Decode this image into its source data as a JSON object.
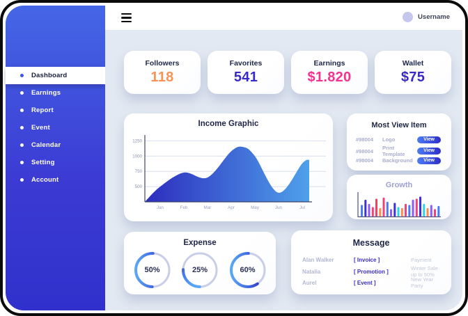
{
  "topbar": {
    "username": "Username"
  },
  "sidebar": {
    "items": [
      {
        "label": "Dashboard",
        "active": true
      },
      {
        "label": "Earnings",
        "active": false
      },
      {
        "label": "Report",
        "active": false
      },
      {
        "label": "Event",
        "active": false
      },
      {
        "label": "Calendar",
        "active": false
      },
      {
        "label": "Setting",
        "active": false
      },
      {
        "label": "Account",
        "active": false
      }
    ]
  },
  "stats": [
    {
      "label": "Followers",
      "value": "118",
      "color": "#FA9255"
    },
    {
      "label": "Favorites",
      "value": "541",
      "color": "#372AC8"
    },
    {
      "label": "Earnings",
      "value": "$1.820",
      "color": "#F5318F"
    },
    {
      "label": "Wallet",
      "value": "$75",
      "color": "#372AC8"
    }
  ],
  "most_view": {
    "title": "Most View Item",
    "rows": [
      {
        "id": "#98004",
        "name": "Logo",
        "action": "View"
      },
      {
        "id": "#98004",
        "name": "Print Template",
        "action": "View"
      },
      {
        "id": "#98004",
        "name": "Background",
        "action": "View"
      }
    ]
  },
  "message": {
    "title": "Message",
    "rows": [
      {
        "name": "Alan Walker",
        "tag": "[ Invoice ]",
        "text": "Payment"
      },
      {
        "name": "Natalia",
        "tag": "[ Promotion ]",
        "text": "Winter Sale up to 50%"
      },
      {
        "name": "Aurel",
        "tag": "[ Event ]",
        "text": "New Year Party"
      }
    ]
  },
  "chart_data": [
    {
      "type": "area",
      "title": "Income Graphic",
      "x_labels": [
        "Jan",
        "Feb",
        "Mar",
        "Apr",
        "May",
        "Jun",
        "Jul"
      ],
      "y_ticks": [
        500,
        750,
        1000,
        1250
      ],
      "y_range": [
        250,
        1300
      ],
      "grid": true,
      "legend": false,
      "gradient": [
        "#2D2DBE",
        "#4FA0EA"
      ],
      "points": [
        {
          "x": "start",
          "v": 250
        },
        {
          "x": "Jan",
          "v": 500
        },
        {
          "x": "Feb",
          "v": 730
        },
        {
          "x": "Mar",
          "v": 650
        },
        {
          "x": "Apr",
          "v": 1080
        },
        {
          "x": "Apr|May",
          "v": 1150
        },
        {
          "x": "May",
          "v": 1000
        },
        {
          "x": "Jun",
          "v": 400
        },
        {
          "x": "Jul",
          "v": 880
        },
        {
          "x": "end",
          "v": 940
        }
      ]
    },
    {
      "type": "bar",
      "title": "Growth",
      "ylim": [
        0,
        100
      ],
      "bars": [
        {
          "h": 55,
          "color": "#4A7BF7"
        },
        {
          "h": 80,
          "color": "#3F2FD6"
        },
        {
          "h": 60,
          "color": "#8B5CF6"
        },
        {
          "h": 45,
          "color": "#F43F7F"
        },
        {
          "h": 85,
          "color": "#F43F5E"
        },
        {
          "h": 40,
          "color": "#FF8A4C"
        },
        {
          "h": 90,
          "color": "#F43F7F"
        },
        {
          "h": 70,
          "color": "#4A7BF7"
        },
        {
          "h": 35,
          "color": "#8B5CF6"
        },
        {
          "h": 65,
          "color": "#3F2FD6"
        },
        {
          "h": 45,
          "color": "#2DD4E8"
        },
        {
          "h": 40,
          "color": "#FF8A4C"
        },
        {
          "h": 60,
          "color": "#F43F7F"
        },
        {
          "h": 55,
          "color": "#4A7BF7"
        },
        {
          "h": 80,
          "color": "#8B5CF6"
        },
        {
          "h": 85,
          "color": "#F43F7F"
        },
        {
          "h": 95,
          "color": "#3F2FD6"
        },
        {
          "h": 60,
          "color": "#2DD4E8"
        },
        {
          "h": 40,
          "color": "#FF8A4C"
        },
        {
          "h": 55,
          "color": "#8B5CF6"
        },
        {
          "h": 35,
          "color": "#F43F7F"
        },
        {
          "h": 50,
          "color": "#4A7BF7"
        }
      ]
    },
    {
      "type": "donut",
      "title": "Expense",
      "track": "#C9CEE8",
      "gradient": [
        "#2B2BC4",
        "#59A8F8"
      ],
      "donuts": [
        {
          "label": "50%",
          "percent": 50,
          "start": "top"
        },
        {
          "label": "25%",
          "percent": 25,
          "start": "left"
        },
        {
          "label": "60%",
          "percent": 60,
          "start": "top"
        }
      ]
    }
  ]
}
